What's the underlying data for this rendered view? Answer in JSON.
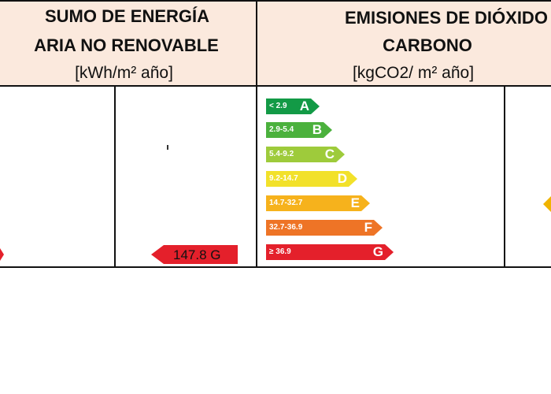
{
  "energy_header": {
    "line1": "SUMO DE ENERGÍA",
    "line2": "ARIA NO RENOVABLE",
    "unit": "[kWh/m² año]"
  },
  "co2_header": {
    "line1": "EMISIONES DE DIÓXIDO D",
    "line2": "CARBONO",
    "unit": "[kgCO2/ m² año]"
  },
  "co2_scale": [
    {
      "range": "< 2.9",
      "letter": "A",
      "color": "#139a46"
    },
    {
      "range": "2.9-5.4",
      "letter": "B",
      "color": "#4bb13d"
    },
    {
      "range": "5.4-9.2",
      "letter": "C",
      "color": "#9ecb3b"
    },
    {
      "range": "9.2-14.7",
      "letter": "D",
      "color": "#f2e12a"
    },
    {
      "range": "14.7-32.7",
      "letter": "E",
      "color": "#f6b21c"
    },
    {
      "range": "32.7-36.9",
      "letter": "F",
      "color": "#ee7426"
    },
    {
      "range": "≥ 36.9",
      "letter": "G",
      "color": "#e4202b"
    }
  ],
  "energy_value_tag": {
    "text": "147.8 G",
    "color": "#e4202b"
  }
}
